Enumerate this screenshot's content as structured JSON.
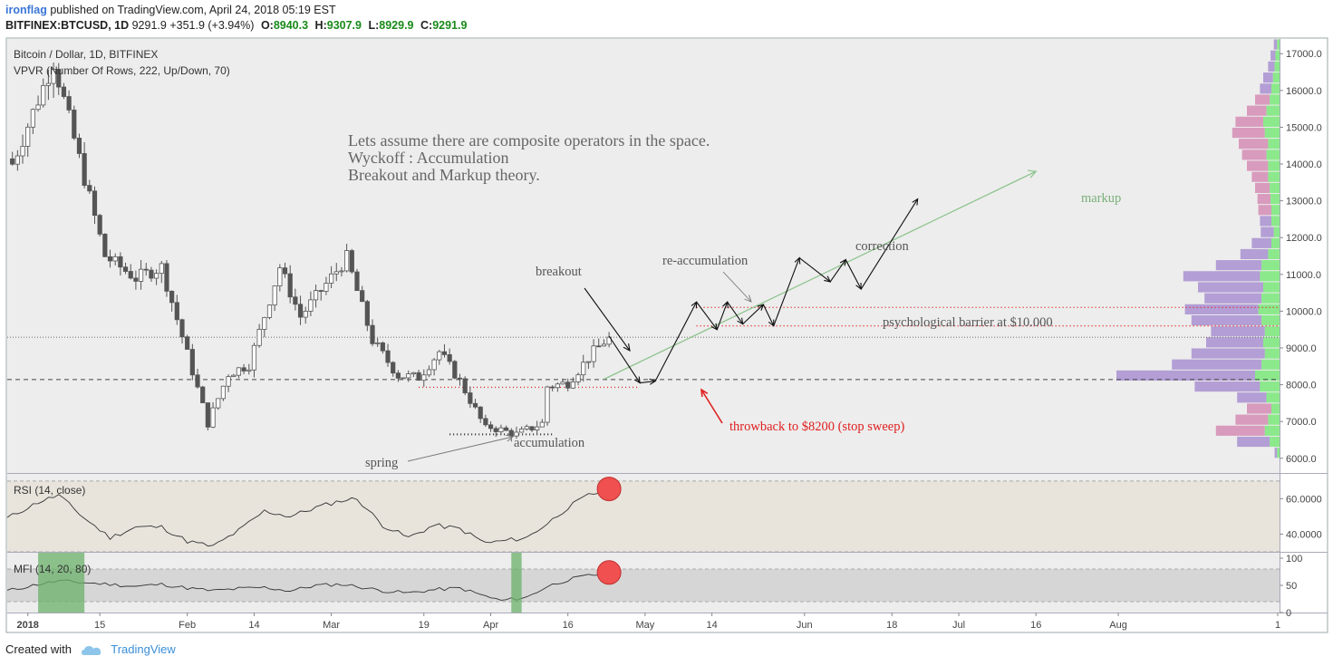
{
  "header": {
    "author": "ironflag",
    "published": "published on TradingView.com, April 24, 2018 05:19 EST",
    "symbol": "BITFINEX:BTCUSD, 1D",
    "last": "9291.9",
    "change": "+351.9 (+3.94%)",
    "o_label": "O:",
    "o": "8940.3",
    "h_label": "H:",
    "h": "9307.9",
    "l_label": "L:",
    "l": "8929.9",
    "c_label": "C:",
    "c": "9291.9"
  },
  "pane_titles": {
    "main": "Bitcoin / Dollar, 1D, BITFINEX",
    "vpvr": "VPVR (Number Of Rows, 222, Up/Down, 70)",
    "rsi": "RSI (14, close)",
    "mfi": "MFI (14, 20, 80)"
  },
  "annotations": {
    "thesis_1": "Lets assume there are composite operators in the space.",
    "thesis_2": "Wyckoff : Accumulation",
    "thesis_3": "Breakout and Markup theory.",
    "breakout": "breakout",
    "reaccumulation": "re-accumulation",
    "correction": "correction",
    "markup": "markup",
    "barrier": "psychological barrier at $10.000",
    "throwback": "throwback to $8200 (stop sweep)",
    "spring": "spring",
    "accumulation": "accumulation"
  },
  "colors": {
    "bull": "#ffffff",
    "bear": "#555555",
    "vp_up": "#7fe87f",
    "vp_down": "#a88fd0",
    "vp_down_alt": "#d48cb4",
    "markup_line": "#8fc48f",
    "annot_red": "#e02020",
    "rsi_band": "#e8e4dc",
    "mfi_band": "#d6d6d6",
    "mfi_hi": "#6ab06a",
    "marker": "#f05050"
  },
  "footer": {
    "created_with": "Created with",
    "brand": "TradingView"
  },
  "chart_data": [
    {
      "type": "candlestick",
      "title": "Bitcoin / Dollar, 1D, BITFINEX",
      "ylim": [
        5600,
        17400
      ],
      "y_ticks": [
        "6000.0",
        "7000.0",
        "8000.0",
        "9000.0",
        "10000.0",
        "11000.0",
        "12000.0",
        "13000.0",
        "14000.0",
        "15000.0",
        "16000.0",
        "17000.0"
      ],
      "x_ticks": [
        "2018",
        "15",
        "Feb",
        "14",
        "Mar",
        "19",
        "Apr",
        "16",
        "May",
        "14",
        "Jun",
        "18",
        "Jul",
        "16",
        "Aug",
        "1"
      ],
      "x_range": [
        "2017-12-28",
        "2018-09-01"
      ],
      "close_path_dates": [
        "2017-12-29",
        "2018-01-06",
        "2018-01-16",
        "2018-01-22",
        "2018-01-27",
        "2018-02-05",
        "2018-02-09",
        "2018-02-13",
        "2018-02-19",
        "2018-02-23",
        "2018-03-04",
        "2018-03-09",
        "2018-03-14",
        "2018-03-18",
        "2018-03-22",
        "2018-03-26",
        "2018-03-31",
        "2018-04-01",
        "2018-04-06",
        "2018-04-11",
        "2018-04-12",
        "2018-04-16",
        "2018-04-21",
        "2018-04-24"
      ],
      "close_path_values": [
        14000,
        16800,
        11500,
        10900,
        11200,
        6950,
        8300,
        8550,
        11200,
        9850,
        11450,
        9200,
        8250,
        8200,
        8900,
        8100,
        6800,
        6850,
        6650,
        6950,
        7950,
        8050,
        8900,
        9291.9
      ],
      "horizontal_levels": [
        {
          "value": 9291.9,
          "style": "dotted",
          "label": "last price"
        },
        {
          "value": 8140,
          "style": "dashed"
        },
        {
          "value": 10100,
          "style": "red-dotted"
        },
        {
          "value": 9600,
          "style": "red-dotted"
        },
        {
          "value": 7930,
          "style": "red-dotted"
        },
        {
          "value": 6650,
          "style": "black-dotted"
        }
      ],
      "projection_path": {
        "dates": [
          "2018-04-24",
          "2018-04-30",
          "2018-05-03",
          "2018-05-11",
          "2018-05-15",
          "2018-05-17",
          "2018-05-20",
          "2018-05-24",
          "2018-05-26",
          "2018-05-31",
          "2018-06-06",
          "2018-06-09",
          "2018-06-12",
          "2018-06-23"
        ],
        "values": [
          9320,
          8050,
          8100,
          10250,
          9500,
          10250,
          9650,
          10180,
          9600,
          11450,
          10800,
          11400,
          10600,
          13050
        ]
      },
      "markup_line": {
        "dates": [
          "2018-04-23",
          "2018-07-16"
        ],
        "values": [
          8150,
          13800
        ]
      }
    },
    {
      "type": "line",
      "title": "RSI (14, close)",
      "ylim": [
        30,
        74
      ],
      "y_ticks": [
        "40.0000",
        "60.0000"
      ],
      "band": [
        30,
        70
      ],
      "x": [
        "2017-12-28",
        "2018-01-03",
        "2018-01-07",
        "2018-01-12",
        "2018-01-17",
        "2018-01-22",
        "2018-01-27",
        "2018-02-01",
        "2018-02-06",
        "2018-02-11",
        "2018-02-16",
        "2018-02-21",
        "2018-02-26",
        "2018-03-03",
        "2018-03-06",
        "2018-03-11",
        "2018-03-16",
        "2018-03-21",
        "2018-03-26",
        "2018-03-31",
        "2018-04-03",
        "2018-04-08",
        "2018-04-12",
        "2018-04-16",
        "2018-04-20",
        "2018-04-24"
      ],
      "values": [
        49,
        58,
        62,
        49,
        38,
        44,
        44,
        36,
        33,
        42,
        53,
        50,
        55,
        59,
        60,
        45,
        38,
        45,
        43,
        35,
        36,
        38,
        46,
        55,
        62,
        65
      ]
    },
    {
      "type": "line",
      "title": "MFI (14, 20, 80)",
      "ylim": [
        0,
        110
      ],
      "y_ticks": [
        "0",
        "50",
        "100"
      ],
      "band": [
        20,
        80
      ],
      "x": [
        "2017-12-28",
        "2018-01-03",
        "2018-01-07",
        "2018-01-12",
        "2018-01-17",
        "2018-01-22",
        "2018-01-27",
        "2018-02-01",
        "2018-02-06",
        "2018-02-11",
        "2018-02-16",
        "2018-02-21",
        "2018-02-26",
        "2018-03-03",
        "2018-03-06",
        "2018-03-11",
        "2018-03-16",
        "2018-03-21",
        "2018-03-26",
        "2018-03-31",
        "2018-04-03",
        "2018-04-08",
        "2018-04-12",
        "2018-04-16",
        "2018-04-20",
        "2018-04-24"
      ],
      "values": [
        40,
        52,
        58,
        55,
        52,
        48,
        52,
        45,
        40,
        44,
        46,
        40,
        50,
        52,
        48,
        40,
        36,
        42,
        45,
        30,
        22,
        28,
        48,
        60,
        68,
        72
      ]
    },
    {
      "type": "bar",
      "title": "VPVR (Number Of Rows, 222, Up/Down, 70)",
      "orientation": "horizontal",
      "price_levels": [
        6000,
        6300,
        6600,
        6900,
        7200,
        7500,
        7800,
        8100,
        8400,
        8700,
        9000,
        9300,
        9600,
        9900,
        10200,
        10500,
        10800,
        11100,
        11400,
        11700,
        12000,
        12300,
        12600,
        12900,
        13200,
        13500,
        13800,
        14100,
        14400,
        14700,
        15000,
        15300,
        15600,
        15900,
        16200,
        16500,
        16800,
        17100
      ],
      "series": [
        {
          "name": "Up",
          "values": [
            3,
            12,
            18,
            14,
            10,
            16,
            24,
            30,
            22,
            18,
            20,
            18,
            22,
            26,
            22,
            20,
            24,
            22,
            14,
            10,
            7,
            10,
            10,
            11,
            12,
            14,
            14,
            16,
            14,
            18,
            20,
            16,
            12,
            10,
            8,
            6,
            5,
            3
          ]
        },
        {
          "name": "Down",
          "values": [
            3,
            40,
            60,
            40,
            30,
            36,
            80,
            170,
            110,
            90,
            70,
            66,
            86,
            90,
            70,
            80,
            94,
            56,
            34,
            24,
            16,
            14,
            16,
            16,
            18,
            20,
            26,
            30,
            36,
            40,
            34,
            24,
            18,
            14,
            12,
            8,
            6,
            4
          ]
        }
      ]
    }
  ]
}
